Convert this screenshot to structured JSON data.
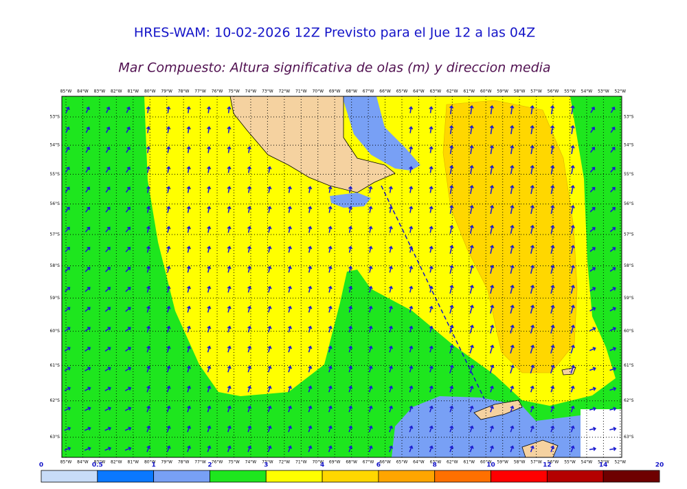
{
  "header": {
    "title": "HRES-WAM: 10-02-2026 12Z Previsto para el Jue 12 a las 04Z",
    "subtitle": "Mar Compuesto: Altura significativa de olas (m) y direccion media"
  },
  "map": {
    "lon_labels": [
      {
        "value": 85,
        "label": "85°W"
      },
      {
        "value": 84,
        "label": "84°W"
      },
      {
        "value": 83,
        "label": "83°W"
      },
      {
        "value": 82,
        "label": "82°W"
      },
      {
        "value": 81,
        "label": "81°W"
      },
      {
        "value": 80,
        "label": "80°W"
      },
      {
        "value": 79,
        "label": "79°W"
      },
      {
        "value": 78,
        "label": "78°W"
      },
      {
        "value": 77,
        "label": "77°W"
      },
      {
        "value": 76,
        "label": "76°W"
      },
      {
        "value": 75,
        "label": "75°W"
      },
      {
        "value": 74,
        "label": "74°W"
      },
      {
        "value": 73,
        "label": "73°W"
      },
      {
        "value": 72,
        "label": "72°W"
      },
      {
        "value": 71,
        "label": "71°W"
      },
      {
        "value": 70,
        "label": "70°W"
      },
      {
        "value": 69,
        "label": "69°W"
      },
      {
        "value": 68,
        "label": "68°W"
      },
      {
        "value": 67,
        "label": "67°W"
      },
      {
        "value": 66,
        "label": "66°W"
      },
      {
        "value": 65,
        "label": "65°W"
      },
      {
        "value": 64,
        "label": "64°W"
      },
      {
        "value": 63,
        "label": "63°W"
      },
      {
        "value": 62,
        "label": "62°W"
      },
      {
        "value": 61,
        "label": "61°W"
      },
      {
        "value": 60,
        "label": "60°W"
      },
      {
        "value": 59,
        "label": "59°W"
      },
      {
        "value": 58,
        "label": "58°W"
      },
      {
        "value": 57,
        "label": "57°W"
      },
      {
        "value": 56,
        "label": "56°W"
      },
      {
        "value": 55,
        "label": "55°W"
      },
      {
        "value": 54,
        "label": "54°W"
      },
      {
        "value": 53,
        "label": "53°W"
      },
      {
        "value": 52,
        "label": "52°W"
      }
    ],
    "lat_labels": [
      {
        "value": 53,
        "label": "53°S"
      },
      {
        "value": 54,
        "label": "54°S"
      },
      {
        "value": 55,
        "label": "55°S"
      },
      {
        "value": 56,
        "label": "56°S"
      },
      {
        "value": 57,
        "label": "57°S"
      },
      {
        "value": 58,
        "label": "58°S"
      },
      {
        "value": 59,
        "label": "59°S"
      },
      {
        "value": 60,
        "label": "60°S"
      },
      {
        "value": 61,
        "label": "61°S"
      },
      {
        "value": 62,
        "label": "62°S"
      },
      {
        "value": 63,
        "label": "63°S"
      }
    ]
  },
  "colorbar": {
    "ticks": [
      0,
      0.5,
      1,
      2,
      3,
      4,
      6,
      8,
      10,
      12,
      14,
      20
    ],
    "colors": [
      "#c8dcf8",
      "#0a78ff",
      "#78a0f5",
      "#1ee61e",
      "#ffff00",
      "#ffd700",
      "#ffa500",
      "#ff7000",
      "#ff0000",
      "#b40000",
      "#6e0000",
      "#3a3a3a"
    ]
  }
}
